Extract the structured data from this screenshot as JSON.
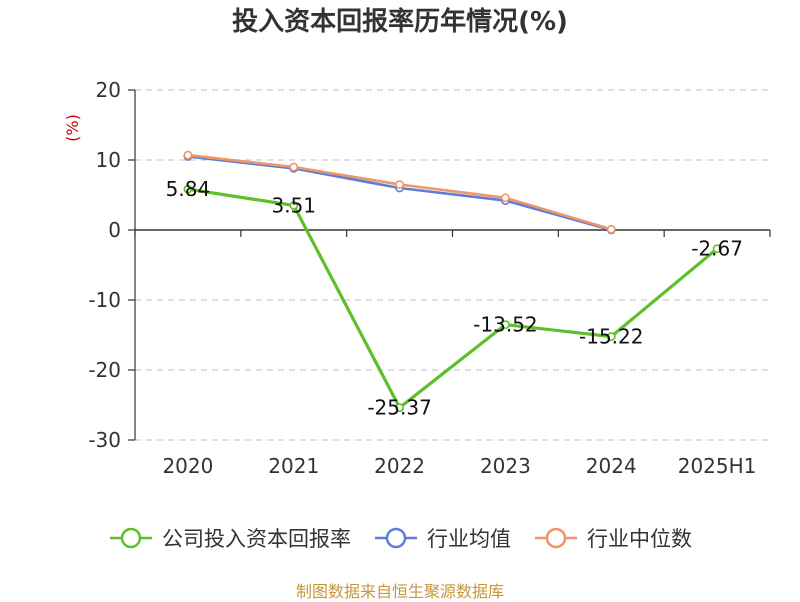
{
  "chart_data": {
    "type": "line",
    "title": "投入资本回报率历年情况(%)",
    "ylabel": "(%)",
    "xlabel": "",
    "categories": [
      "2020",
      "2021",
      "2022",
      "2023",
      "2024",
      "2025H1"
    ],
    "ylim": [
      -30,
      20
    ],
    "yticks": [
      20,
      10,
      0,
      -10,
      -20,
      -30
    ],
    "grid": true,
    "legend_position": "bottom",
    "series": [
      {
        "name": "公司投入资本回报率",
        "color": "#5dbf2c",
        "values": [
          5.84,
          3.51,
          -25.37,
          -13.52,
          -15.22,
          -2.67
        ],
        "labels": [
          "5.84",
          "3.51",
          "-25.37",
          "-13.52",
          "-15.22",
          "-2.67"
        ]
      },
      {
        "name": "行业均值",
        "color": "#5b7fd6",
        "values": [
          10.5,
          8.8,
          6.0,
          4.2,
          0.0,
          null
        ]
      },
      {
        "name": "行业中位数",
        "color": "#f0956a",
        "values": [
          10.7,
          9.0,
          6.5,
          4.6,
          0.1,
          null
        ]
      }
    ]
  },
  "source": "制图数据来自恒生聚源数据库"
}
